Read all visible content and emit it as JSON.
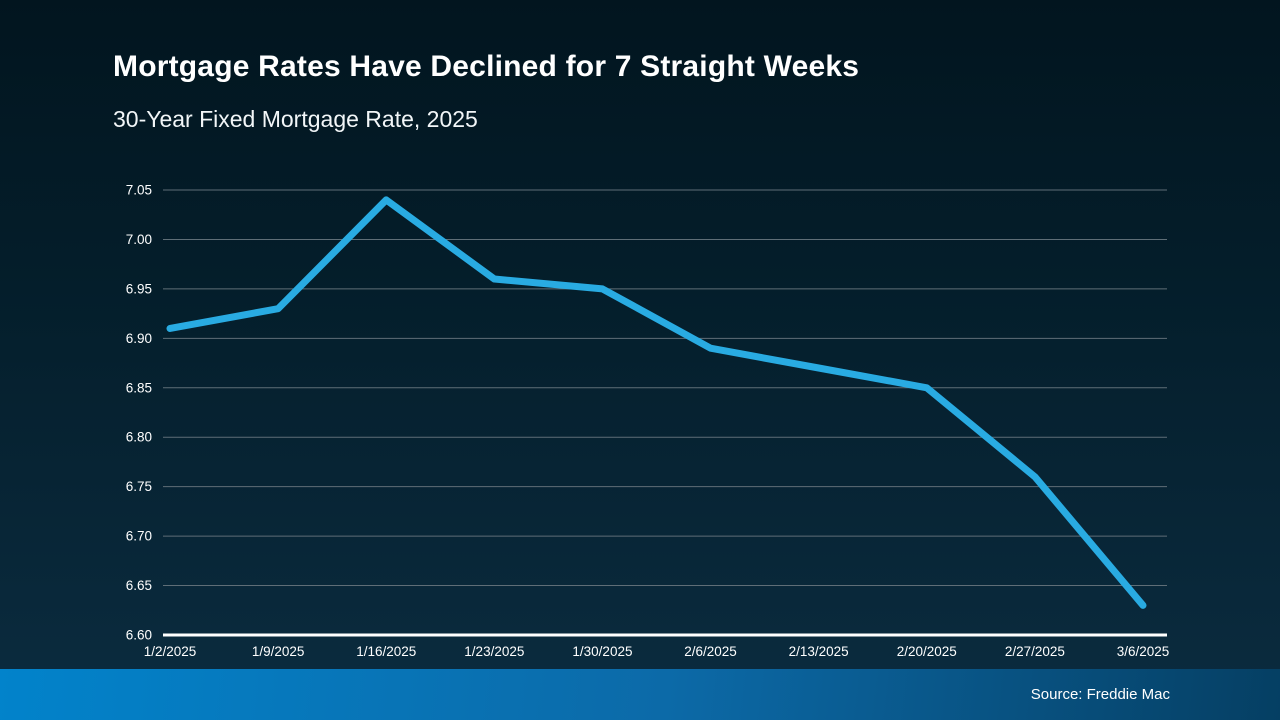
{
  "slide": {
    "title": "Mortgage Rates Have Declined for 7 Straight Weeks",
    "subtitle": "30-Year Fixed Mortgage Rate, 2025",
    "source": "Source: Freddie Mac"
  },
  "colors": {
    "background_top": "#02151f",
    "background_bottom": "#0b2c40",
    "line": "#29abe2",
    "gridline": "#5f6e77",
    "axis": "#ffffff",
    "text": "#ffffff",
    "footer_gradient_left": "#0283cb",
    "footer_gradient_mid": "#0c6aa8",
    "footer_gradient_right": "#053f63"
  },
  "chart_data": {
    "type": "line",
    "title": "Mortgage Rates Have Declined for 7 Straight Weeks",
    "subtitle": "30-Year Fixed Mortgage Rate, 2025",
    "x": [
      "1/2/2025",
      "1/9/2025",
      "1/16/2025",
      "1/23/2025",
      "1/30/2025",
      "2/6/2025",
      "2/13/2025",
      "2/20/2025",
      "2/27/2025",
      "3/6/2025"
    ],
    "series": [
      {
        "name": "30-Year Fixed Mortgage Rate",
        "values": [
          6.91,
          6.93,
          7.04,
          6.96,
          6.95,
          6.89,
          6.87,
          6.85,
          6.76,
          6.63
        ]
      }
    ],
    "xlabel": "",
    "ylabel": "",
    "ylim": [
      6.6,
      7.05
    ],
    "ytick_step": 0.05,
    "ytick_format_decimals": 2,
    "grid": true,
    "legend": false
  }
}
